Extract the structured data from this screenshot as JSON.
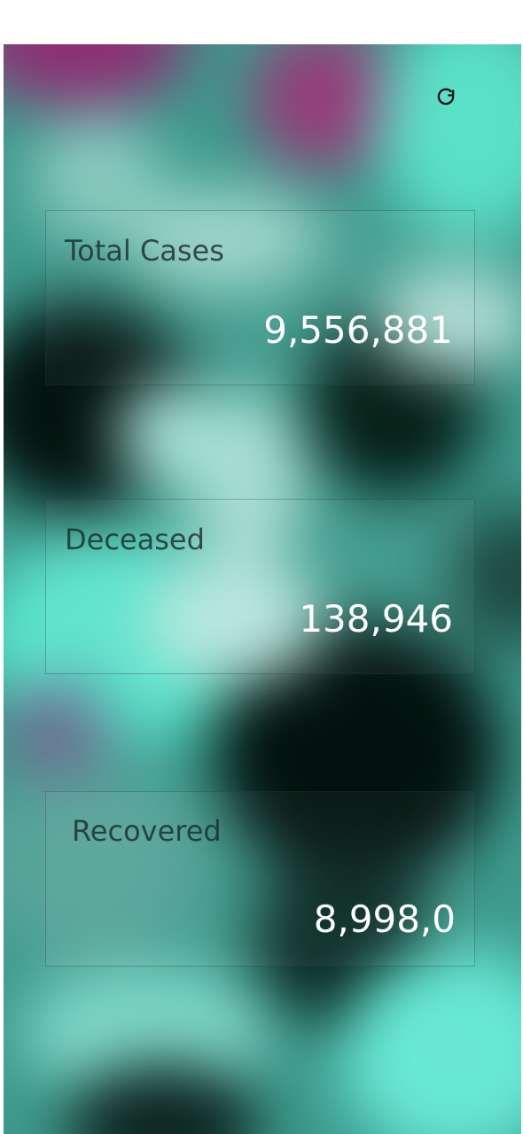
{
  "screen": {
    "refresh_icon": "refresh-icon"
  },
  "cards": {
    "total_cases": {
      "label": "Total Cases",
      "value": "9,556,881"
    },
    "deceased": {
      "label": "Deceased",
      "value": "138,946"
    },
    "recovered": {
      "label": "Recovered",
      "value": "8,998,0"
    }
  }
}
